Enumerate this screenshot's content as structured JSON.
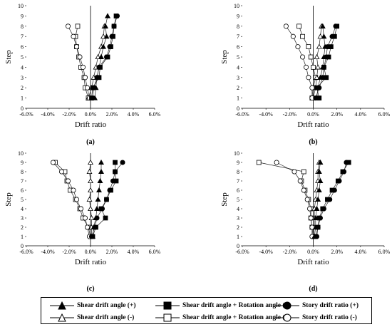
{
  "chart_data": [
    {
      "type": "line",
      "panel_label": "(a)",
      "xlabel": "Drift ratio",
      "ylabel": "Step",
      "xlim": [
        -6,
        6
      ],
      "ylim": [
        0,
        10
      ],
      "x_ticks": [
        "-6.0%",
        "-4.0%",
        "-2.0%",
        "0.0%",
        "2.0%",
        "4.0%",
        "6.0%"
      ],
      "y_ticks": [
        "0",
        "1",
        "2",
        "3",
        "4",
        "5",
        "6",
        "7",
        "8",
        "9",
        "10"
      ],
      "series": [
        {
          "name": "Shear drift angle (+)",
          "marker": "filled-triangle",
          "points": [
            [
              0.4,
              1
            ],
            [
              0.5,
              2
            ],
            [
              0.6,
              3
            ],
            [
              0.8,
              4
            ],
            [
              1.0,
              5
            ],
            [
              1.2,
              6
            ],
            [
              1.5,
              7
            ],
            [
              1.4,
              8
            ],
            [
              1.6,
              9
            ]
          ]
        },
        {
          "name": "Shear drift angle (-)",
          "marker": "open-triangle",
          "points": [
            [
              -0.2,
              1
            ],
            [
              0.1,
              2
            ],
            [
              0.3,
              3
            ],
            [
              0.5,
              4
            ],
            [
              0.7,
              5
            ],
            [
              1.0,
              6
            ],
            [
              1.2,
              7
            ],
            [
              1.3,
              8
            ]
          ]
        },
        {
          "name": "Shear drift angle + Rotation angle (+)",
          "marker": "filled-square",
          "points": [
            [
              0.1,
              1
            ],
            [
              0.2,
              2
            ],
            [
              0.8,
              3
            ],
            [
              0.9,
              4
            ],
            [
              1.6,
              5
            ],
            [
              1.9,
              6
            ],
            [
              2.1,
              7
            ],
            [
              2.2,
              8
            ],
            [
              2.4,
              9
            ]
          ]
        },
        {
          "name": "Shear drift angle + Rotation angle (-)",
          "marker": "open-square",
          "points": [
            [
              -0.2,
              1
            ],
            [
              -0.5,
              2
            ],
            [
              -0.6,
              3
            ],
            [
              -0.9,
              4
            ],
            [
              -1.1,
              5
            ],
            [
              -1.3,
              6
            ],
            [
              -1.4,
              7
            ],
            [
              -1.2,
              8
            ]
          ]
        },
        {
          "name": "Story drift ratio (+)",
          "marker": "filled-circle",
          "points": [
            [
              0.2,
              1
            ],
            [
              0.3,
              2
            ],
            [
              0.6,
              3
            ],
            [
              0.8,
              4
            ],
            [
              1.5,
              5
            ],
            [
              1.8,
              6
            ],
            [
              2.0,
              7
            ],
            [
              2.2,
              8
            ],
            [
              2.5,
              9
            ]
          ]
        },
        {
          "name": "Story drift ratio (-)",
          "marker": "open-circle",
          "points": [
            [
              -0.1,
              1
            ],
            [
              -0.3,
              2
            ],
            [
              -0.5,
              3
            ],
            [
              -0.7,
              4
            ],
            [
              -1.0,
              5
            ],
            [
              -1.3,
              6
            ],
            [
              -1.6,
              7
            ],
            [
              -2.1,
              8
            ]
          ]
        }
      ]
    },
    {
      "type": "line",
      "panel_label": "(b)",
      "xlabel": "Drift ratio",
      "ylabel": "Step",
      "xlim": [
        -6,
        6
      ],
      "ylim": [
        0,
        10
      ],
      "x_ticks": [
        "-6.0%",
        "-4.0%",
        "-2.0%",
        "0.0%",
        "2.0%",
        "4.0%",
        "6.0%"
      ],
      "y_ticks": [
        "0",
        "1",
        "2",
        "3",
        "4",
        "5",
        "6",
        "7",
        "8",
        "9",
        "10"
      ],
      "series": [
        {
          "name": "Shear drift angle (+)",
          "marker": "filled-triangle",
          "points": [
            [
              0.3,
              1
            ],
            [
              0.4,
              2
            ],
            [
              0.6,
              3
            ],
            [
              0.8,
              4
            ],
            [
              0.9,
              5
            ],
            [
              1.0,
              6
            ],
            [
              0.9,
              7
            ],
            [
              0.8,
              8
            ]
          ]
        },
        {
          "name": "Shear drift angle (-)",
          "marker": "open-triangle",
          "points": [
            [
              0.0,
              1
            ],
            [
              0.2,
              2
            ],
            [
              0.3,
              3
            ],
            [
              0.4,
              4
            ],
            [
              0.3,
              5
            ],
            [
              0.5,
              6
            ],
            [
              0.6,
              7
            ],
            [
              0.7,
              8
            ]
          ]
        },
        {
          "name": "Shear drift angle + Rotation angle (+)",
          "marker": "filled-square",
          "points": [
            [
              0.5,
              1
            ],
            [
              0.3,
              2
            ],
            [
              1.1,
              3
            ],
            [
              0.9,
              4
            ],
            [
              1.3,
              5
            ],
            [
              1.5,
              6
            ],
            [
              1.8,
              7
            ],
            [
              2.0,
              8
            ]
          ]
        },
        {
          "name": "Shear drift angle + Rotation angle (-)",
          "marker": "open-square",
          "points": [
            [
              -0.1,
              1
            ],
            [
              0.0,
              2
            ],
            [
              0.2,
              3
            ],
            [
              0.0,
              4
            ],
            [
              -0.2,
              5
            ],
            [
              -0.4,
              6
            ],
            [
              -0.9,
              7
            ],
            [
              -1.2,
              8
            ]
          ]
        },
        {
          "name": "Story drift ratio (+)",
          "marker": "filled-circle",
          "points": [
            [
              0.2,
              1
            ],
            [
              0.5,
              2
            ],
            [
              0.8,
              3
            ],
            [
              0.9,
              4
            ],
            [
              1.1,
              5
            ],
            [
              1.2,
              6
            ],
            [
              1.6,
              7
            ],
            [
              1.9,
              8
            ]
          ]
        },
        {
          "name": "Story drift ratio (-)",
          "marker": "open-circle",
          "points": [
            [
              -0.1,
              1
            ],
            [
              -0.1,
              2
            ],
            [
              -0.4,
              3
            ],
            [
              -0.6,
              4
            ],
            [
              -0.9,
              5
            ],
            [
              -1.3,
              6
            ],
            [
              -1.7,
              7
            ],
            [
              -2.3,
              8
            ]
          ]
        }
      ]
    },
    {
      "type": "line",
      "panel_label": "(c)",
      "xlabel": "Drift ratio",
      "ylabel": "Step",
      "xlim": [
        -6,
        6
      ],
      "ylim": [
        0,
        10
      ],
      "x_ticks": [
        "-6.0%",
        "-4.0%",
        "-2.0%",
        "0.0%",
        "2.0%",
        "4.0%",
        "6.0%"
      ],
      "y_ticks": [
        "0",
        "1",
        "2",
        "3",
        "4",
        "5",
        "6",
        "7",
        "8",
        "9",
        "10"
      ],
      "series": [
        {
          "name": "Shear drift angle (+)",
          "marker": "filled-triangle",
          "points": [
            [
              0.2,
              1
            ],
            [
              0.3,
              2
            ],
            [
              0.5,
              3
            ],
            [
              0.6,
              4
            ],
            [
              0.7,
              5
            ],
            [
              0.8,
              6
            ],
            [
              0.9,
              7
            ],
            [
              1.0,
              8
            ],
            [
              1.0,
              9
            ]
          ]
        },
        {
          "name": "Shear drift angle (-)",
          "marker": "open-triangle",
          "points": [
            [
              0.1,
              1
            ],
            [
              0.1,
              2
            ],
            [
              0.1,
              3
            ],
            [
              0.0,
              4
            ],
            [
              -0.1,
              5
            ],
            [
              0.0,
              6
            ],
            [
              0.0,
              7
            ],
            [
              -0.1,
              8
            ],
            [
              0.0,
              9
            ]
          ]
        },
        {
          "name": "Shear drift angle + Rotation angle (+)",
          "marker": "filled-square",
          "points": [
            [
              0.2,
              1
            ],
            [
              0.5,
              2
            ],
            [
              1.4,
              3
            ],
            [
              1.0,
              4
            ],
            [
              1.5,
              5
            ],
            [
              1.9,
              6
            ],
            [
              2.4,
              7
            ],
            [
              2.3,
              8
            ],
            [
              2.3,
              9
            ]
          ]
        },
        {
          "name": "Shear drift angle + Rotation angle (-)",
          "marker": "open-square",
          "points": [
            [
              0.0,
              1
            ],
            [
              -0.2,
              2
            ],
            [
              -0.7,
              3
            ],
            [
              -1.0,
              4
            ],
            [
              -1.4,
              5
            ],
            [
              -1.9,
              6
            ],
            [
              -2.2,
              7
            ],
            [
              -2.4,
              8
            ],
            [
              -3.3,
              9
            ]
          ]
        },
        {
          "name": "Story drift ratio (+)",
          "marker": "filled-circle",
          "points": [
            [
              0.1,
              1
            ],
            [
              0.4,
              2
            ],
            [
              0.6,
              3
            ],
            [
              1.1,
              4
            ],
            [
              1.5,
              5
            ],
            [
              1.8,
              6
            ],
            [
              2.1,
              7
            ],
            [
              2.3,
              8
            ],
            [
              3.0,
              9
            ]
          ]
        },
        {
          "name": "Story drift ratio (-)",
          "marker": "open-circle",
          "points": [
            [
              -0.1,
              1
            ],
            [
              -0.3,
              2
            ],
            [
              -0.5,
              3
            ],
            [
              -0.9,
              4
            ],
            [
              -1.3,
              5
            ],
            [
              -1.6,
              6
            ],
            [
              -2.1,
              7
            ],
            [
              -2.7,
              8
            ],
            [
              -3.5,
              9
            ]
          ]
        }
      ]
    },
    {
      "type": "line",
      "panel_label": "(d)",
      "xlabel": "Drift ratio",
      "ylabel": "Step",
      "xlim": [
        -6,
        6
      ],
      "ylim": [
        0,
        10
      ],
      "x_ticks": [
        "-6.0%",
        "-4.0%",
        "-2.0%",
        "0.0%",
        "2.0%",
        "4.0%",
        "6.0%"
      ],
      "y_ticks": [
        "0",
        "1",
        "2",
        "3",
        "4",
        "5",
        "6",
        "7",
        "8",
        "9",
        "10"
      ],
      "series": [
        {
          "name": "Shear drift angle (+)",
          "marker": "filled-triangle",
          "points": [
            [
              0.1,
              1
            ],
            [
              0.2,
              2
            ],
            [
              0.2,
              3
            ],
            [
              0.3,
              4
            ],
            [
              0.4,
              5
            ],
            [
              0.5,
              6
            ],
            [
              0.6,
              7
            ],
            [
              0.5,
              8
            ],
            [
              0.6,
              9
            ]
          ]
        },
        {
          "name": "Shear drift angle (-)",
          "marker": "open-triangle",
          "points": [
            [
              0.0,
              1
            ],
            [
              0.1,
              2
            ],
            [
              0.1,
              3
            ],
            [
              0.1,
              4
            ],
            [
              0.2,
              5
            ],
            [
              0.3,
              6
            ],
            [
              0.4,
              7
            ],
            [
              0.4,
              8
            ],
            [
              0.5,
              9
            ]
          ]
        },
        {
          "name": "Shear drift angle + Rotation angle (+)",
          "marker": "filled-square",
          "points": [
            [
              0.2,
              1
            ],
            [
              0.4,
              2
            ],
            [
              0.5,
              3
            ],
            [
              0.8,
              4
            ],
            [
              1.2,
              5
            ],
            [
              1.6,
              6
            ],
            [
              2.1,
              7
            ],
            [
              2.5,
              8
            ],
            [
              3.0,
              9
            ]
          ]
        },
        {
          "name": "Shear drift angle + Rotation angle (-)",
          "marker": "open-square",
          "points": [
            [
              0.0,
              1
            ],
            [
              -0.1,
              2
            ],
            [
              -0.2,
              3
            ],
            [
              -0.2,
              4
            ],
            [
              -0.4,
              5
            ],
            [
              -0.7,
              6
            ],
            [
              -1.0,
              7
            ],
            [
              -0.8,
              8
            ],
            [
              -4.6,
              9
            ]
          ]
        },
        {
          "name": "Story drift ratio (+)",
          "marker": "filled-circle",
          "points": [
            [
              0.3,
              1
            ],
            [
              0.4,
              2
            ],
            [
              0.6,
              3
            ],
            [
              0.9,
              4
            ],
            [
              1.4,
              5
            ],
            [
              1.8,
              6
            ],
            [
              2.2,
              7
            ],
            [
              2.6,
              8
            ],
            [
              2.8,
              9
            ]
          ]
        },
        {
          "name": "Story drift ratio (-)",
          "marker": "open-circle",
          "points": [
            [
              -0.1,
              1
            ],
            [
              -0.1,
              2
            ],
            [
              -0.2,
              3
            ],
            [
              -0.3,
              4
            ],
            [
              -0.5,
              5
            ],
            [
              -0.8,
              6
            ],
            [
              -1.1,
              7
            ],
            [
              -1.6,
              8
            ],
            [
              -3.1,
              9
            ]
          ]
        }
      ]
    }
  ],
  "legend": {
    "items": [
      {
        "label": "Shear drift angle (+)",
        "marker": "filled-triangle"
      },
      {
        "label": "Shear drift angle + Rotation angle (+)",
        "marker": "filled-square"
      },
      {
        "label": "Story drift ratio (+)",
        "marker": "filled-circle"
      },
      {
        "label": "Shear drift angle (-)",
        "marker": "open-triangle"
      },
      {
        "label": "Shear drift angle + Rotation angle (-)",
        "marker": "open-square"
      },
      {
        "label": "Story drift ratio (-)",
        "marker": "open-circle"
      }
    ]
  }
}
